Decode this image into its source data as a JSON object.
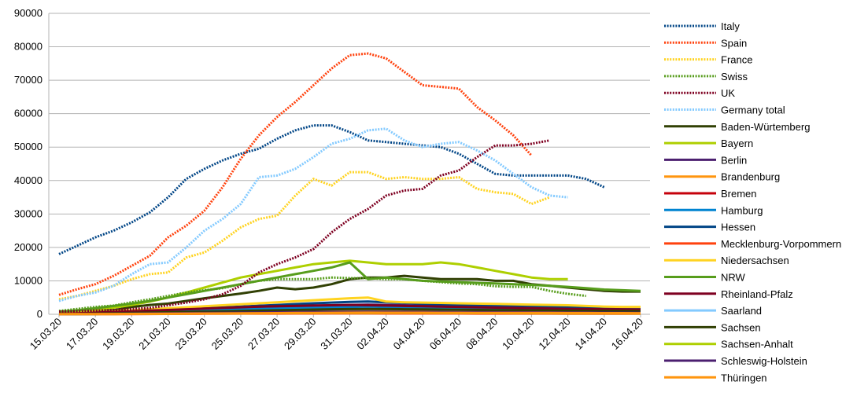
{
  "chart_data": {
    "type": "line",
    "title": "",
    "xlabel": "",
    "ylabel": "",
    "ylim": [
      0,
      90000
    ],
    "yticks": [
      0,
      10000,
      20000,
      30000,
      40000,
      50000,
      60000,
      70000,
      80000,
      90000
    ],
    "grid": true,
    "legend_position": "right",
    "x": [
      "15.03.20",
      "16.03.20",
      "17.03.20",
      "18.03.20",
      "19.03.20",
      "20.03.20",
      "21.03.20",
      "22.03.20",
      "23.03.20",
      "24.03.20",
      "25.03.20",
      "26.03.20",
      "27.03.20",
      "28.03.20",
      "29.03.20",
      "30.03.20",
      "31.03.20",
      "01.04.20",
      "02.04.20",
      "03.04.20",
      "04.04.20",
      "05.04.20",
      "06.04.20",
      "07.04.20",
      "08.04.20",
      "09.04.20",
      "10.04.20",
      "11.04.20",
      "12.04.20",
      "13.04.20",
      "14.04.20",
      "15.04.20",
      "16.04.20"
    ],
    "xtick_labels": [
      "15.03.20",
      "17.03.20",
      "19.03.20",
      "21.03.20",
      "23.03.20",
      "25.03.20",
      "27.03.20",
      "29.03.20",
      "31.03.20",
      "02.04.20",
      "04.04.20",
      "06.04.20",
      "08.04.20",
      "10.04.20",
      "12.04.20",
      "14.04.20",
      "16.04.20"
    ],
    "series": [
      {
        "name": "Italy",
        "style": "dotted",
        "color": "#004586",
        "values": [
          18000,
          20500,
          23000,
          25000,
          27500,
          30500,
          35000,
          40500,
          43500,
          46000,
          48000,
          49500,
          52500,
          55000,
          56500,
          56500,
          54500,
          52000,
          51500,
          51000,
          50500,
          50000,
          48000,
          45000,
          42000,
          41500,
          41500,
          41500,
          41500,
          40500,
          38000,
          null,
          null
        ]
      },
      {
        "name": "Spain",
        "style": "dotted",
        "color": "#ff420e",
        "values": [
          5800,
          7500,
          9000,
          11500,
          14500,
          17500,
          23000,
          26500,
          31000,
          38000,
          46500,
          53500,
          59000,
          63500,
          68500,
          73500,
          77500,
          78000,
          76500,
          72500,
          68500,
          68000,
          67500,
          62000,
          58000,
          53500,
          47500,
          null,
          null,
          null,
          null,
          null,
          null
        ]
      },
      {
        "name": "France",
        "style": "dotted",
        "color": "#ffd320",
        "values": [
          4500,
          5500,
          7000,
          8500,
          10500,
          12000,
          12500,
          17000,
          18500,
          22000,
          26000,
          28500,
          29500,
          35500,
          40500,
          38500,
          42500,
          42500,
          40500,
          41000,
          40500,
          40500,
          41000,
          37500,
          36500,
          36000,
          33000,
          35000,
          null,
          null,
          null,
          null,
          null
        ]
      },
      {
        "name": "Swiss",
        "style": "dotted",
        "color": "#579d1c",
        "values": [
          1000,
          1600,
          2200,
          2600,
          3600,
          4500,
          5500,
          6500,
          7200,
          7800,
          9000,
          10000,
          10500,
          10500,
          10500,
          11000,
          10800,
          10800,
          10500,
          10500,
          10000,
          9600,
          9200,
          9000,
          8400,
          8200,
          8200,
          7000,
          6100,
          5500,
          null,
          null,
          null
        ]
      },
      {
        "name": "UK",
        "style": "dotted",
        "color": "#7e0021",
        "values": [
          800,
          900,
          1100,
          1300,
          1600,
          1900,
          2700,
          3500,
          4500,
          6000,
          8500,
          12500,
          15000,
          17000,
          19500,
          24500,
          28500,
          31500,
          35500,
          37000,
          37500,
          41500,
          43000,
          47000,
          50500,
          50500,
          51000,
          52000,
          null,
          null,
          null,
          null,
          null
        ]
      },
      {
        "name": "Germany total",
        "style": "dotted",
        "color": "#83caff",
        "values": [
          4000,
          5500,
          6500,
          8500,
          12000,
          15000,
          15500,
          20000,
          25000,
          28500,
          33000,
          41000,
          41500,
          43500,
          47000,
          51000,
          52500,
          55000,
          55500,
          52000,
          50000,
          51000,
          51500,
          49000,
          46000,
          42000,
          38000,
          35500,
          35000,
          null,
          null,
          null,
          null
        ]
      },
      {
        "name": "Baden-Würtemberg",
        "style": "solid",
        "color": "#314004",
        "values": [
          300,
          500,
          800,
          1200,
          2200,
          2800,
          3200,
          4000,
          4800,
          5500,
          6200,
          7000,
          8000,
          7500,
          8000,
          9000,
          10500,
          11000,
          11000,
          11500,
          11000,
          10500,
          10500,
          10500,
          10000,
          10000,
          9000,
          8500,
          8000,
          7500,
          7000,
          6800,
          6800
        ]
      },
      {
        "name": "Bayern",
        "style": "solid",
        "color": "#aecf00",
        "values": [
          500,
          800,
          1200,
          2000,
          2800,
          3800,
          5000,
          6500,
          8000,
          9500,
          11000,
          12000,
          13000,
          14000,
          15000,
          15500,
          16000,
          15500,
          15000,
          15000,
          15000,
          15500,
          15000,
          14000,
          13000,
          12000,
          11000,
          10500,
          10500,
          null,
          null,
          null,
          null
        ]
      },
      {
        "name": "Berlin",
        "style": "solid",
        "color": "#4b1f6f",
        "values": [
          100,
          200,
          300,
          400,
          600,
          800,
          1000,
          1200,
          1400,
          1600,
          1800,
          2000,
          2200,
          2400,
          2600,
          2700,
          2800,
          2900,
          2800,
          2700,
          2600,
          2500,
          2400,
          2300,
          2200,
          2100,
          2000,
          1900,
          1800,
          1700,
          1600,
          1500,
          1500
        ]
      },
      {
        "name": "Brandenburg",
        "style": "solid",
        "color": "#ff950e",
        "values": [
          50,
          80,
          120,
          180,
          250,
          320,
          400,
          480,
          550,
          620,
          700,
          780,
          850,
          900,
          950,
          1000,
          1000,
          1000,
          980,
          960,
          940,
          920,
          900,
          880,
          860,
          840,
          820,
          800,
          780,
          760,
          740,
          720,
          700
        ]
      },
      {
        "name": "Bremen",
        "style": "solid",
        "color": "#c5000b",
        "values": [
          30,
          50,
          70,
          100,
          130,
          160,
          190,
          220,
          250,
          280,
          300,
          320,
          340,
          360,
          380,
          400,
          410,
          420,
          420,
          410,
          400,
          390,
          380,
          370,
          360,
          350,
          340,
          330,
          320,
          310,
          300,
          290,
          280
        ]
      },
      {
        "name": "Hamburg",
        "style": "solid",
        "color": "#0084d1",
        "values": [
          80,
          150,
          250,
          400,
          550,
          700,
          850,
          1000,
          1150,
          1300,
          1450,
          1600,
          1750,
          1900,
          2000,
          2100,
          2200,
          2300,
          2200,
          2100,
          2000,
          1900,
          1800,
          1700,
          1600,
          1500,
          1400,
          1300,
          1200,
          1150,
          1100,
          1050,
          1000
        ]
      },
      {
        "name": "Hessen",
        "style": "solid",
        "color": "#004586",
        "values": [
          100,
          200,
          350,
          550,
          800,
          1050,
          1300,
          1550,
          1800,
          2050,
          2300,
          2550,
          2800,
          3050,
          3300,
          3500,
          3700,
          3800,
          3600,
          3400,
          3200,
          3000,
          2900,
          2800,
          2700,
          2600,
          2500,
          2400,
          2300,
          2200,
          2100,
          2000,
          2000
        ]
      },
      {
        "name": "Mecklenburg-Vorpommern",
        "style": "solid",
        "color": "#ff420e",
        "values": [
          20,
          30,
          40,
          60,
          80,
          100,
          120,
          140,
          160,
          180,
          200,
          210,
          220,
          230,
          240,
          250,
          250,
          250,
          245,
          240,
          235,
          230,
          225,
          220,
          215,
          210,
          205,
          200,
          195,
          190,
          185,
          180,
          180
        ]
      },
      {
        "name": "Niedersachsen",
        "style": "solid",
        "color": "#ffd320",
        "values": [
          200,
          400,
          600,
          900,
          1200,
          1500,
          1800,
          2100,
          2400,
          2700,
          3000,
          3300,
          3600,
          3900,
          4200,
          4500,
          4800,
          5000,
          3800,
          3600,
          3500,
          3400,
          3300,
          3200,
          3100,
          3000,
          2900,
          2800,
          2700,
          2500,
          2300,
          2200,
          2200
        ]
      },
      {
        "name": "NRW",
        "style": "solid",
        "color": "#579d1c",
        "values": [
          800,
          1200,
          1800,
          2500,
          3200,
          4000,
          5000,
          6000,
          7000,
          8000,
          9000,
          10000,
          11000,
          12000,
          13000,
          14000,
          15500,
          10500,
          11000,
          10500,
          10000,
          9800,
          9600,
          9400,
          9200,
          9000,
          8800,
          8500,
          8200,
          7800,
          7400,
          7200,
          7000
        ]
      },
      {
        "name": "Rheinland-Pfalz",
        "style": "solid",
        "color": "#7e0021",
        "values": [
          150,
          300,
          500,
          700,
          900,
          1100,
          1300,
          1500,
          1700,
          1900,
          2100,
          2300,
          2400,
          2500,
          2600,
          2700,
          2800,
          2700,
          2600,
          2500,
          2400,
          2300,
          2200,
          2100,
          2000,
          1900,
          1800,
          1700,
          1600,
          1550,
          1500,
          1450,
          1400
        ]
      },
      {
        "name": "Saarland",
        "style": "solid",
        "color": "#83caff",
        "values": [
          30,
          60,
          100,
          150,
          200,
          250,
          300,
          350,
          400,
          450,
          500,
          550,
          600,
          650,
          700,
          720,
          740,
          760,
          740,
          720,
          700,
          680,
          660,
          640,
          620,
          600,
          580,
          560,
          540,
          520,
          500,
          480,
          460
        ]
      },
      {
        "name": "Sachsen",
        "style": "solid",
        "color": "#314004",
        "values": [
          60,
          120,
          200,
          300,
          400,
          500,
          600,
          700,
          800,
          900,
          1000,
          1100,
          1200,
          1300,
          1400,
          1500,
          1550,
          1600,
          1550,
          1500,
          1450,
          1400,
          1350,
          1300,
          1250,
          1200,
          1150,
          1100,
          1050,
          1000,
          980,
          960,
          940
        ]
      },
      {
        "name": "Sachsen-Anhalt",
        "style": "solid",
        "color": "#aecf00",
        "values": [
          20,
          40,
          60,
          90,
          120,
          150,
          180,
          210,
          240,
          270,
          300,
          320,
          340,
          360,
          380,
          400,
          410,
          420,
          410,
          400,
          390,
          380,
          370,
          360,
          350,
          340,
          330,
          320,
          310,
          300,
          290,
          280,
          270
        ]
      },
      {
        "name": "Schleswig-Holstein",
        "style": "solid",
        "color": "#4b1f6f",
        "values": [
          30,
          60,
          100,
          150,
          200,
          250,
          300,
          350,
          400,
          450,
          500,
          550,
          600,
          650,
          700,
          720,
          740,
          760,
          740,
          720,
          700,
          680,
          660,
          640,
          620,
          600,
          580,
          560,
          540,
          520,
          500,
          480,
          460
        ]
      },
      {
        "name": "Thüringen",
        "style": "solid",
        "color": "#ff950e",
        "values": [
          20,
          40,
          60,
          90,
          120,
          150,
          180,
          210,
          240,
          270,
          300,
          330,
          360,
          390,
          420,
          450,
          470,
          490,
          480,
          470,
          460,
          450,
          440,
          430,
          420,
          410,
          400,
          390,
          380,
          370,
          360,
          350,
          340
        ]
      }
    ]
  }
}
